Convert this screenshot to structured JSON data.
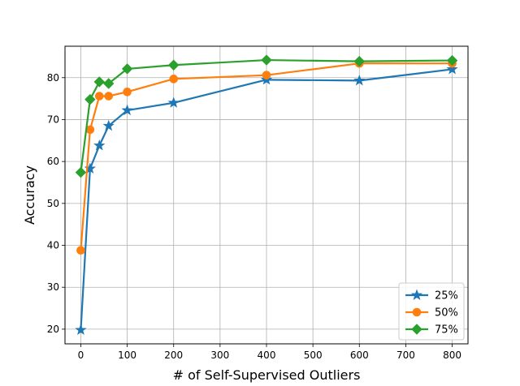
{
  "chart_data": {
    "type": "line",
    "title": "",
    "xlabel": "# of Self-Supervised Outliers",
    "ylabel": "Accuracy",
    "xlim": [
      -34,
      834
    ],
    "ylim": [
      16.5,
      87.5
    ],
    "xticks": [
      0,
      100,
      200,
      300,
      400,
      500,
      600,
      700,
      800
    ],
    "yticks": [
      20,
      30,
      40,
      50,
      60,
      70,
      80
    ],
    "grid": true,
    "legend_position": "bottom-right",
    "series": [
      {
        "name": "25%",
        "color": "#1f77b4",
        "marker": "star",
        "x": [
          0,
          20,
          40,
          60,
          100,
          200,
          400,
          600,
          800
        ],
        "y": [
          19.8,
          58.3,
          63.8,
          68.5,
          72.2,
          74.0,
          79.5,
          79.3,
          82.0
        ]
      },
      {
        "name": "50%",
        "color": "#ff7f0e",
        "marker": "circle",
        "x": [
          0,
          20,
          40,
          60,
          100,
          200,
          400,
          600,
          800
        ],
        "y": [
          38.8,
          67.6,
          75.6,
          75.6,
          76.6,
          79.7,
          80.6,
          83.4,
          83.4
        ]
      },
      {
        "name": "75%",
        "color": "#2ca02c",
        "marker": "diamond",
        "x": [
          0,
          20,
          40,
          60,
          100,
          200,
          400,
          600,
          800
        ],
        "y": [
          57.4,
          74.8,
          79.0,
          78.6,
          82.1,
          83.0,
          84.2,
          83.9,
          84.1
        ]
      }
    ]
  }
}
